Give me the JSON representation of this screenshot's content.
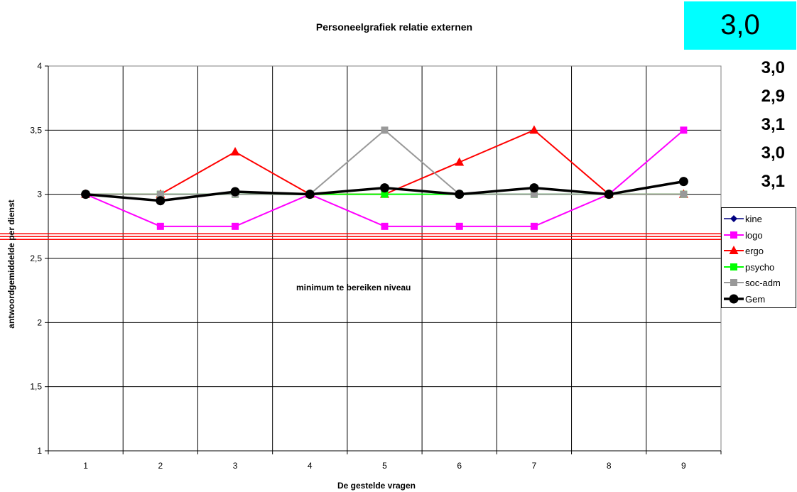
{
  "chart_data": {
    "type": "line",
    "title": "Personeelgrafiek relatie externen",
    "xlabel": "De gestelde vragen",
    "ylabel": "antwoordgemiddelde per dienst",
    "categories": [
      "1",
      "2",
      "3",
      "4",
      "5",
      "6",
      "7",
      "8",
      "9"
    ],
    "ylim": [
      1,
      4
    ],
    "yticks": [
      1,
      1.5,
      2,
      2.5,
      3,
      3.5,
      4
    ],
    "ytick_labels": [
      "1",
      "1,5",
      "2",
      "2,5",
      "3",
      "3,5",
      "4"
    ],
    "grid": true,
    "legend_position": "right",
    "threshold": {
      "value": 2.67,
      "label": "minimum te bereiken niveau",
      "color": "#ff0000"
    },
    "series": [
      {
        "name": "kine",
        "values": [
          3,
          3,
          3,
          3,
          3,
          3,
          3,
          3,
          3
        ],
        "color": "#000080",
        "marker": "diamond",
        "width": 1.5
      },
      {
        "name": "logo",
        "values": [
          3,
          2.75,
          2.75,
          3,
          2.75,
          2.75,
          2.75,
          3,
          3.5
        ],
        "color": "#ff00ff",
        "marker": "square",
        "width": 2
      },
      {
        "name": "ergo",
        "values": [
          3,
          3,
          3.33,
          3,
          3,
          3.25,
          3.5,
          3,
          3
        ],
        "color": "#ff0000",
        "marker": "triangle",
        "width": 2
      },
      {
        "name": "psycho",
        "values": [
          3,
          3,
          3,
          3,
          3,
          3,
          3,
          3,
          3
        ],
        "color": "#00ff00",
        "marker": "square",
        "width": 2
      },
      {
        "name": "soc-adm",
        "values": [
          3,
          3,
          3,
          3,
          3.5,
          3,
          3,
          3,
          3
        ],
        "color": "#999999",
        "marker": "square",
        "width": 2
      },
      {
        "name": "Gem",
        "values": [
          3,
          2.95,
          3.02,
          3,
          3.05,
          3,
          3.05,
          3,
          3.1
        ],
        "color": "#000000",
        "marker": "circle",
        "width": 3.5
      }
    ]
  },
  "score_box": {
    "value": "3,0",
    "color": "#00ffff"
  },
  "scores": [
    "3,0",
    "2,9",
    "3,1",
    "3,0",
    "3,1"
  ]
}
